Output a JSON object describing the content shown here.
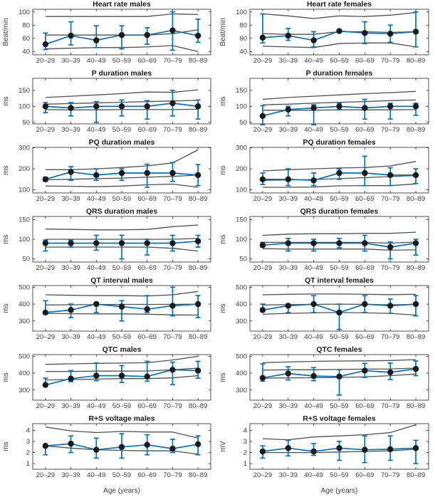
{
  "figure": {
    "xlabel": "Age (years)",
    "colors": {
      "series_blue": "#0072BD",
      "marker_black": "#1a1a1a",
      "ref_line": "#3d3d3d",
      "axis": "#262626",
      "tick_text": "#404040",
      "background": "#ffffff"
    }
  },
  "chart_data": [
    {
      "type": "line",
      "title": "Heart rate males",
      "ylabel": "Beat/min",
      "ylim": [
        35,
        104
      ],
      "yticks": [
        40,
        60,
        80,
        100
      ],
      "categories": [
        "20–29",
        "30–39",
        "40–49",
        "50–59",
        "60–69",
        "70–79",
        "80–89"
      ],
      "values": [
        51,
        64,
        57,
        65,
        65,
        72,
        64
      ],
      "err_low": [
        43,
        50,
        46,
        44,
        51,
        42,
        54
      ],
      "err_high": [
        68,
        85,
        79,
        79,
        76,
        100,
        89
      ],
      "ref_lines": [
        [
          93,
          93,
          93,
          93,
          93,
          97,
          96
        ],
        [
          65,
          65,
          65,
          65,
          65,
          67,
          73
        ],
        [
          44,
          45,
          46,
          46,
          47,
          49,
          40
        ]
      ],
      "show_xlabel": false
    },
    {
      "type": "line",
      "title": "Heart rate females",
      "ylabel": "Beat/min",
      "ylim": [
        35,
        104
      ],
      "yticks": [
        40,
        60,
        80,
        100
      ],
      "categories": [
        "20–29",
        "30–39",
        "40–49",
        "50–59",
        "60–69",
        "70–79",
        "80–89"
      ],
      "values": [
        61,
        64,
        57,
        71,
        68,
        67,
        70
      ],
      "err_low": [
        53,
        57,
        47,
        71,
        52,
        54,
        47
      ],
      "err_high": [
        97,
        75,
        70,
        71,
        85,
        80,
        100
      ],
      "ref_lines": [
        [
          97,
          94,
          90,
          94,
          93,
          95,
          99
        ],
        [
          67,
          66,
          66,
          70,
          70,
          69,
          70
        ],
        [
          48,
          47,
          46,
          52,
          53,
          53,
          47
        ]
      ],
      "show_xlabel": false
    },
    {
      "type": "line",
      "title": "P duration males",
      "ylabel": "ms",
      "ylim": [
        45,
        188
      ],
      "yticks": [
        50,
        100,
        150
      ],
      "categories": [
        "20–29",
        "30–39",
        "40–49",
        "50–59",
        "60–69",
        "70–79",
        "80–89"
      ],
      "values": [
        100,
        95,
        100,
        100,
        100,
        110,
        100
      ],
      "err_low": [
        80,
        70,
        50,
        70,
        60,
        70,
        60
      ],
      "err_high": [
        112,
        112,
        115,
        120,
        118,
        150,
        120
      ],
      "ref_lines": [
        [
          128,
          132,
          136,
          140,
          145,
          144,
          152
        ],
        [
          107,
          109,
          111,
          113,
          115,
          117,
          119
        ],
        [
          90,
          89,
          89,
          90,
          90,
          90,
          91
        ]
      ],
      "show_xlabel": false
    },
    {
      "type": "line",
      "title": "P duration females",
      "ylabel": "ms",
      "ylim": [
        45,
        188
      ],
      "yticks": [
        50,
        100,
        150
      ],
      "categories": [
        "20–29",
        "30–39",
        "40–49",
        "50–59",
        "60–69",
        "70–79",
        "80–89"
      ],
      "values": [
        70,
        90,
        95,
        100,
        95,
        100,
        100
      ],
      "err_low": [
        42,
        70,
        42,
        90,
        60,
        60,
        72
      ],
      "err_high": [
        102,
        100,
        105,
        110,
        122,
        110,
        110
      ],
      "ref_lines": [
        [
          122,
          128,
          132,
          136,
          140,
          143,
          147
        ],
        [
          105,
          107,
          110,
          113,
          115,
          118,
          120
        ],
        [
          88,
          88,
          88,
          89,
          89,
          89,
          90
        ]
      ],
      "show_xlabel": false
    },
    {
      "type": "line",
      "title": "PQ duration males",
      "ylabel": "ms",
      "ylim": [
        85,
        302
      ],
      "yticks": [
        100,
        200,
        300
      ],
      "categories": [
        "20–29",
        "30–39",
        "40–49",
        "50–59",
        "60–69",
        "70–79",
        "80–89"
      ],
      "values": [
        150,
        185,
        170,
        180,
        180,
        180,
        170
      ],
      "err_low": [
        140,
        145,
        145,
        145,
        112,
        140,
        120
      ],
      "err_high": [
        160,
        210,
        200,
        200,
        222,
        230,
        220
      ],
      "ref_lines": [
        [
          196,
          196,
          200,
          206,
          214,
          228,
          290
        ],
        [
          148,
          150,
          153,
          156,
          160,
          164,
          170
        ],
        [
          118,
          117,
          115,
          118,
          124,
          127,
          112
        ]
      ],
      "show_xlabel": false
    },
    {
      "type": "line",
      "title": "PQ duration females",
      "ylabel": "ms",
      "ylim": [
        85,
        302
      ],
      "yticks": [
        100,
        200,
        300
      ],
      "categories": [
        "20–29",
        "30–39",
        "40–49",
        "50–59",
        "60–69",
        "70–79",
        "80–89"
      ],
      "values": [
        150,
        150,
        145,
        180,
        180,
        170,
        170
      ],
      "err_low": [
        125,
        120,
        120,
        150,
        120,
        120,
        130
      ],
      "err_high": [
        180,
        200,
        180,
        200,
        260,
        205,
        200
      ],
      "ref_lines": [
        [
          190,
          196,
          200,
          204,
          206,
          214,
          235
        ],
        [
          145,
          147,
          149,
          153,
          158,
          163,
          168
        ],
        [
          112,
          112,
          113,
          119,
          120,
          120,
          128
        ]
      ],
      "show_xlabel": false
    },
    {
      "type": "line",
      "title": "QRS duration males",
      "ylabel": "ms",
      "ylim": [
        42,
        158
      ],
      "yticks": [
        50,
        100,
        150
      ],
      "categories": [
        "20–29",
        "30–39",
        "40–49",
        "50–59",
        "60–69",
        "70–79",
        "80–89"
      ],
      "values": [
        90,
        90,
        90,
        90,
        90,
        90,
        95
      ],
      "err_low": [
        70,
        80,
        72,
        50,
        60,
        70,
        80
      ],
      "err_high": [
        98,
        98,
        110,
        110,
        100,
        110,
        110
      ],
      "ref_lines": [
        [
          126,
          125,
          124,
          124,
          125,
          132,
          136
        ],
        [
          100,
          100,
          100,
          100,
          100,
          100,
          102
        ],
        [
          80,
          80,
          80,
          80,
          80,
          77,
          70
        ]
      ],
      "show_xlabel": false
    },
    {
      "type": "line",
      "title": "QRS duration females",
      "ylabel": "ms",
      "ylim": [
        42,
        158
      ],
      "yticks": [
        50,
        100,
        150
      ],
      "categories": [
        "20–29",
        "30–39",
        "40–49",
        "50–59",
        "60–69",
        "70–79",
        "80–89"
      ],
      "values": [
        85,
        90,
        90,
        90,
        90,
        80,
        90
      ],
      "err_low": [
        80,
        70,
        70,
        78,
        70,
        50,
        60
      ],
      "err_high": [
        92,
        102,
        100,
        102,
        110,
        93,
        100
      ],
      "ref_lines": [
        [
          110,
          113,
          114,
          114,
          115,
          115,
          118
        ],
        [
          92,
          92,
          92,
          92,
          92,
          90,
          93
        ],
        [
          76,
          75,
          75,
          75,
          75,
          72,
          73
        ]
      ],
      "show_xlabel": false
    },
    {
      "type": "line",
      "title": "QT interval males",
      "ylabel": "ms",
      "ylim": [
        240,
        510
      ],
      "yticks": [
        300,
        400,
        500
      ],
      "categories": [
        "20–29",
        "30–39",
        "40–49",
        "50–59",
        "60–69",
        "70–79",
        "80–89"
      ],
      "values": [
        350,
        365,
        400,
        385,
        370,
        390,
        400
      ],
      "err_low": [
        340,
        320,
        350,
        300,
        350,
        330,
        320
      ],
      "err_high": [
        420,
        400,
        410,
        420,
        450,
        500,
        450
      ],
      "ref_lines": [
        [
          455,
          452,
          450,
          450,
          448,
          455,
          475
        ],
        [
          395,
          396,
          397,
          398,
          398,
          398,
          400
        ],
        [
          345,
          343,
          342,
          342,
          340,
          336,
          335
        ]
      ],
      "show_xlabel": false
    },
    {
      "type": "line",
      "title": "QT interval females",
      "ylabel": "ms",
      "ylim": [
        240,
        510
      ],
      "yticks": [
        300,
        400,
        500
      ],
      "categories": [
        "20–29",
        "30–39",
        "40–49",
        "50–59",
        "60–69",
        "70–79",
        "80–89"
      ],
      "values": [
        365,
        390,
        400,
        350,
        400,
        390,
        400
      ],
      "err_low": [
        355,
        350,
        350,
        250,
        350,
        345,
        330
      ],
      "err_high": [
        400,
        400,
        450,
        400,
        450,
        430,
        450
      ],
      "ref_lines": [
        [
          455,
          458,
          460,
          460,
          458,
          456,
          458
        ],
        [
          395,
          397,
          398,
          400,
          398,
          396,
          398
        ],
        [
          340,
          345,
          348,
          350,
          348,
          345,
          335
        ]
      ],
      "show_xlabel": false
    },
    {
      "type": "line",
      "title": "QTC males",
      "ylabel": "ms",
      "ylim": [
        240,
        510
      ],
      "yticks": [
        300,
        400,
        500
      ],
      "categories": [
        "20–29",
        "30–39",
        "40–49",
        "50–59",
        "60–69",
        "70–79",
        "80–89"
      ],
      "values": [
        330,
        368,
        385,
        385,
        380,
        420,
        415
      ],
      "err_low": [
        325,
        350,
        355,
        345,
        352,
        332,
        370
      ],
      "err_high": [
        370,
        415,
        460,
        445,
        470,
        465,
        470
      ],
      "ref_lines": [
        [
          452,
          455,
          458,
          460,
          462,
          478,
          500
        ],
        [
          410,
          410,
          412,
          412,
          413,
          420,
          430
        ],
        [
          360,
          362,
          365,
          368,
          368,
          372,
          385
        ]
      ],
      "show_xlabel": false
    },
    {
      "type": "line",
      "title": "QTC females",
      "ylabel": "ms",
      "ylim": [
        240,
        510
      ],
      "yticks": [
        300,
        400,
        500
      ],
      "categories": [
        "20–29",
        "30–39",
        "40–49",
        "50–59",
        "60–69",
        "70–79",
        "80–89"
      ],
      "values": [
        372,
        398,
        383,
        380,
        415,
        405,
        425
      ],
      "err_low": [
        352,
        360,
        355,
        270,
        375,
        362,
        385
      ],
      "err_high": [
        455,
        438,
        433,
        420,
        458,
        460,
        472
      ],
      "ref_lines": [
        [
          462,
          466,
          470,
          472,
          473,
          475,
          480
        ],
        [
          418,
          420,
          420,
          422,
          424,
          425,
          430
        ],
        [
          370,
          372,
          373,
          375,
          378,
          385,
          395
        ]
      ],
      "show_xlabel": false
    },
    {
      "type": "line",
      "title": "R+S voltage males",
      "ylabel": "ms",
      "ylim": [
        0.5,
        4.6
      ],
      "yticks": [
        1,
        2,
        3,
        4
      ],
      "categories": [
        "20–29",
        "30–39",
        "40–49",
        "50–59",
        "60–69",
        "70–79",
        "80–89"
      ],
      "values": [
        2.6,
        2.8,
        2.25,
        2.5,
        2.7,
        2.35,
        2.75
      ],
      "err_low": [
        1.8,
        2.0,
        1.5,
        1.5,
        1.8,
        2.0,
        1.8
      ],
      "err_high": [
        2.7,
        3.5,
        3.3,
        3.7,
        3.6,
        3.2,
        3.5
      ],
      "ref_lines": [
        [
          4.3,
          3.95,
          3.8,
          3.9,
          3.85,
          3.85,
          3.3
        ],
        [
          2.6,
          2.4,
          2.25,
          2.2,
          2.15,
          2.15,
          1.85
        ]
      ],
      "show_xlabel": true
    },
    {
      "type": "line",
      "title": "R+S voltage females",
      "ylabel": "mV",
      "ylim": [
        0.5,
        4.6
      ],
      "yticks": [
        1,
        2,
        3,
        4
      ],
      "categories": [
        "20–29",
        "30–39",
        "40–49",
        "50–59",
        "60–69",
        "70–79",
        "80–89"
      ],
      "values": [
        2.1,
        2.4,
        2.1,
        2.4,
        2.25,
        2.3,
        2.4
      ],
      "err_low": [
        1.5,
        1.7,
        1.75,
        1.3,
        1.1,
        1.3,
        1.0
      ],
      "err_high": [
        2.6,
        3.1,
        2.8,
        3.0,
        3.5,
        3.5,
        3.1
      ],
      "ref_lines": [
        [
          3.25,
          3.15,
          3.4,
          3.5,
          3.6,
          3.8,
          4.5
        ],
        [
          2.0,
          2.0,
          2.0,
          2.05,
          2.1,
          2.15,
          2.3
        ]
      ],
      "show_xlabel": true
    }
  ]
}
